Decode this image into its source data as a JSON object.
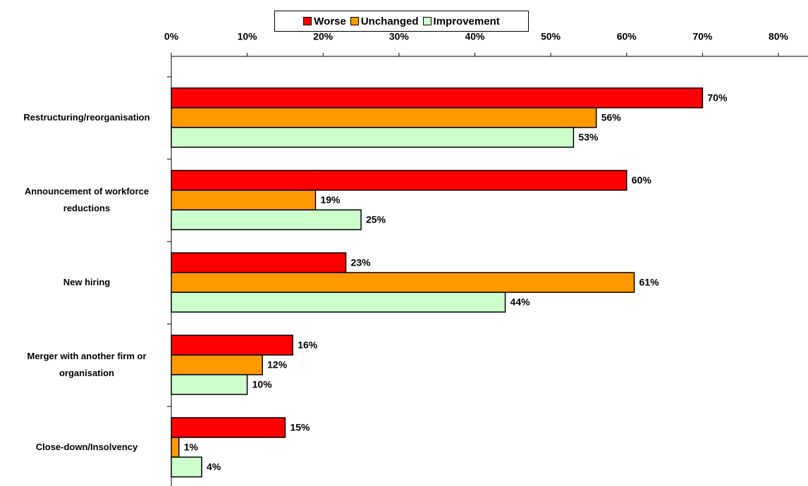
{
  "chart_data": {
    "type": "bar",
    "orientation": "horizontal",
    "categories": [
      "Restructuring/reorganisation",
      "Announcement of workforce reductions",
      "New hiring",
      "Merger with another firm or organisation",
      "Close-down/Insolvency"
    ],
    "series": [
      {
        "name": "Worse",
        "color": "#ff0000",
        "values": [
          70,
          60,
          23,
          16,
          15
        ],
        "value_labels": [
          "70%",
          "60%",
          "23%",
          "16%",
          "15%"
        ]
      },
      {
        "name": "Unchanged",
        "color": "#ff9900",
        "values": [
          56,
          19,
          61,
          12,
          1
        ],
        "value_labels": [
          "56%",
          "19%",
          "61%",
          "12%",
          "1%"
        ]
      },
      {
        "name": "Improvement",
        "color": "#ccffcc",
        "values": [
          53,
          25,
          44,
          10,
          4
        ],
        "value_labels": [
          "53%",
          "25%",
          "44%",
          "10%",
          "4%"
        ]
      }
    ],
    "xlim": [
      0,
      80
    ],
    "xticks": [
      {
        "value": 0,
        "label": "0%"
      },
      {
        "value": 10,
        "label": "10%"
      },
      {
        "value": 20,
        "label": "20%"
      },
      {
        "value": 30,
        "label": "30%"
      },
      {
        "value": 40,
        "label": "40%"
      },
      {
        "value": 50,
        "label": "50%"
      },
      {
        "value": 60,
        "label": "60%"
      },
      {
        "value": 70,
        "label": "70%"
      },
      {
        "value": 80,
        "label": "80%"
      }
    ],
    "legend": "top"
  }
}
